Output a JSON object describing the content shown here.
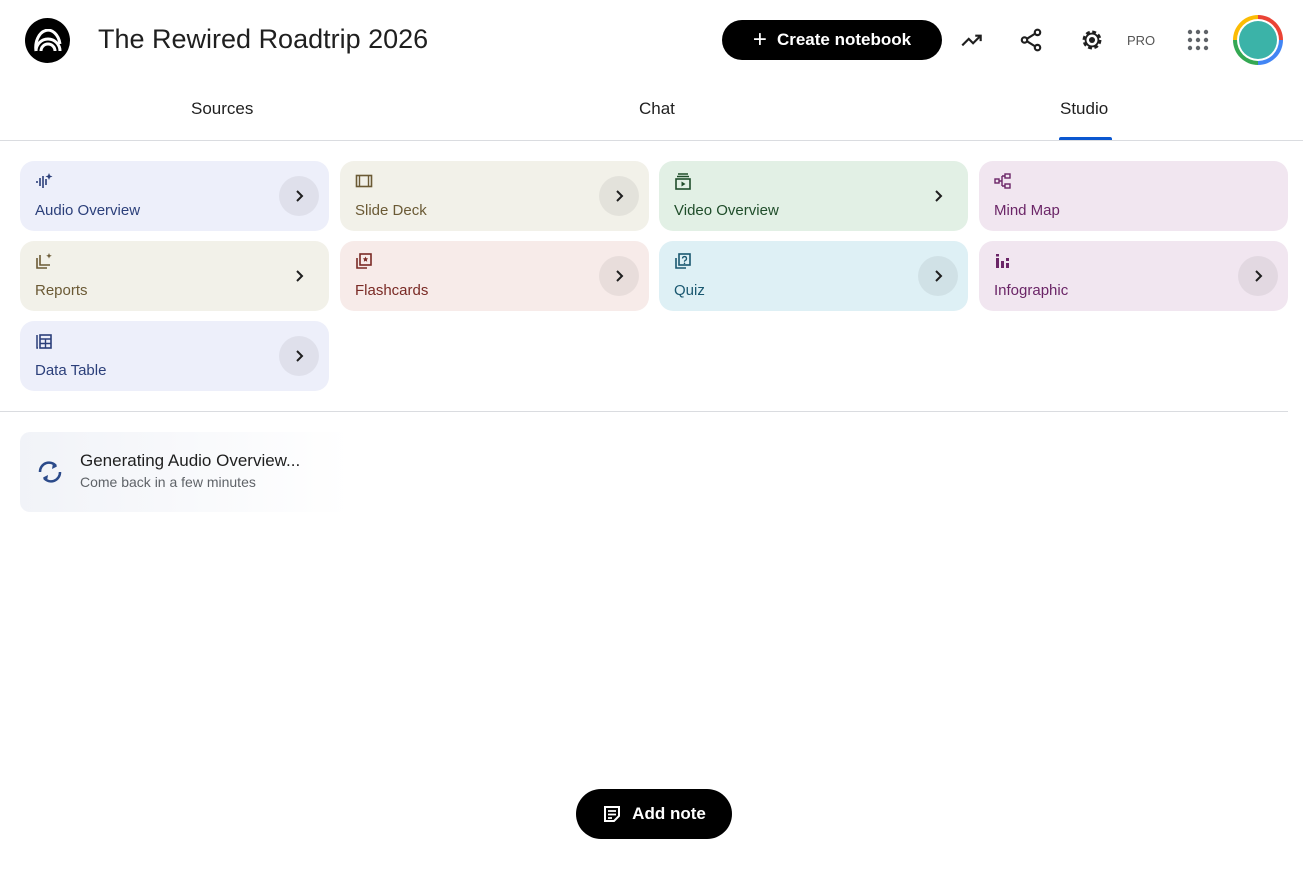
{
  "header": {
    "title": "The Rewired Roadtrip 2026",
    "create_label": "Create notebook",
    "pro_label": "PRO"
  },
  "tabs": [
    {
      "label": "Sources"
    },
    {
      "label": "Chat"
    },
    {
      "label": "Studio",
      "active": true
    }
  ],
  "studio": {
    "cards": [
      {
        "label": "Audio Overview",
        "icon": "audio-sparkle-icon",
        "bg": "#edeffa",
        "fg": "#2b3f7a"
      },
      {
        "label": "Slide Deck",
        "icon": "slides-icon",
        "bg": "#f2f1e9",
        "fg": "#6b5a35"
      },
      {
        "label": "Video Overview",
        "icon": "video-icon",
        "bg": "#e2f0e5",
        "fg": "#1f4d2a"
      },
      {
        "label": "Mind Map",
        "icon": "mind-map-icon",
        "bg": "#f1e6f0",
        "fg": "#6b2567"
      },
      {
        "label": "Reports",
        "icon": "reports-icon",
        "bg": "#f2f1e9",
        "fg": "#6b5a35"
      },
      {
        "label": "Flashcards",
        "icon": "flashcards-icon",
        "bg": "#f7ebe9",
        "fg": "#7a2a25"
      },
      {
        "label": "Quiz",
        "icon": "quiz-icon",
        "bg": "#def0f5",
        "fg": "#1a5870"
      },
      {
        "label": "Infographic",
        "icon": "infographic-icon",
        "bg": "#f1e6f0",
        "fg": "#6b2567"
      },
      {
        "label": "Data Table",
        "icon": "table-icon",
        "bg": "#edeffa",
        "fg": "#2b3f7a"
      }
    ]
  },
  "generating": {
    "title": "Generating Audio Overview...",
    "subtitle": "Come back in a few minutes"
  },
  "footer": {
    "add_note_label": "Add note"
  },
  "accent": "#0b57d0"
}
